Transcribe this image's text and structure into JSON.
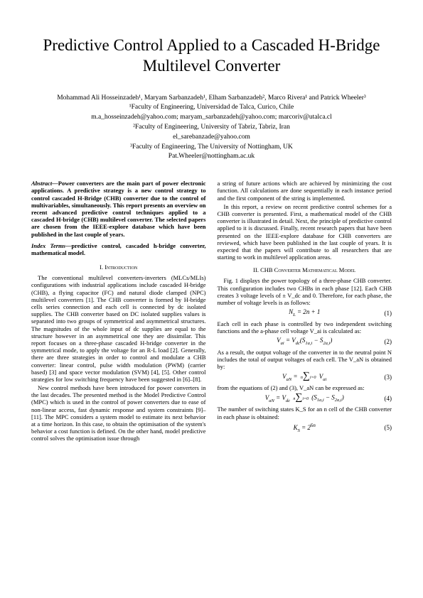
{
  "title": "Predictive Control Applied to a Cascaded H-Bridge Multilevel Converter",
  "authors": {
    "line1": "Mohammad Ali Hosseinzadeh¹, Maryam Sarbanzadeh¹, Elham Sarbanzadeh², Marco Rivera¹ and Patrick Wheeler³",
    "aff1": "¹Faculty of Engineering, Universidad de Talca, Curico, Chile",
    "email1": "m.a_hosseinzadeh@yahoo.com; maryam_sarbanzadeh@yahoo.com; marcoriv@utalca.cl",
    "aff2": "²Faculty of Engineering, University of Tabriz, Tabriz, Iran",
    "email2": "el_sarebanzade@yahoo.com",
    "aff3": "³Faculty of Engineering, The University of Nottingham, UK",
    "email3": "Pat.Wheeler@nottingham.ac.uk"
  },
  "abstract_label": "Abstract—",
  "abstract_text": "Power converters are the main part of power electronic applications. A predictive strategy is a new control strategy to control cascaded H-Bridge (CHB) converter due to the control of multivariables, simultaneously. This report presents an overview on recent advanced predictive control techniques applied to a cascaded H-bridge (CHB) multilevel converter. The selected papers are chosen from the IEEE-explore database which have been published in the last couple of years.",
  "index_label": "Index Terms—",
  "index_text": "predictive control, cascaded h-bridge converter, mathematical model.",
  "sec1_heading": "I. Introduction",
  "sec1_p1": "The conventional multilevel converters-inverters (MLCs/MLIs) configurations with industrial applications include cascaded H-bridge (CHB), a flying capacitor (FC) and natural diode clamped (NPC) multilevel converters [1]. The CHB converter is formed by H-bridge cells series connection and each cell is connected by dc isolated supplies. The CHB converter based on DC isolated supplies values is separated into two groups of symmetrical and asymmetrical structures. The magnitudes of the whole input of dc supplies are equal to the structure however in an asymmetrical one they are dissimilar. This report focuses on a three-phase cascaded H-bridge converter in the symmetrical mode, to apply the voltage for an R-L load [2]. Generally, there are three strategies in order to control and modulate a CHB converter: linear control, pulse width modulation (PWM) (carrier based) [3] and space vector modulation (SVM) [4], [5]. Other control strategies for low switching frequency have been suggested in [6]–[8].",
  "sec1_p2": "New control methods have been introduced for power converters in the last decades. The presented method is the Model Predictive Control (MPC) which is used in the control of power converters due to ease of non-linear access, fast dynamic response and system constraints [9]–[11]. The MPC considers a system model to estimate its next behavior at a time horizon. In this case, to obtain the optimisation of the system's behavior a cost function is defined. On the other hand, model predictive control solves the optimisation issue through",
  "col2_p1": "a string of future actions which are achieved by minimizing the cost function. All calculations are done sequentially in each instance period and the first component of the string is implemented.",
  "col2_p2": "In this report, a review on recent predictive control schemes for a CHB converter is presented. First, a mathematical model of the CHB converter is illustrated in detail. Next, the principle of predictive control applied to it is discussed. Finally, recent research papers that have been presented on the IEEE-explore database for CHB converters are reviewed, which have been published in the last couple of years. It is expected that the papers will contribute to all researchers that are starting to work in multilevel application areas.",
  "sec2_heading": "II. CHB Converter Mathematical Model",
  "sec2_p1": "Fig. 1 displays the power topology of a three-phase CHB converter. This configuration includes two CHBs in each phase [12]. Each CHB creates 3 voltage levels of ± V_dc and 0. Therefore, for each phase, the number of voltage levels is as follows:",
  "eq1": "N_L = 2n + 1",
  "eq1_num": "(1)",
  "sec2_p2": "Each cell in each phase is controlled by two independent switching functions and the a-phase cell voltage V_ai is calculated as:",
  "eq2": "V_ai = V_dc(S_1a,i − S_2a,i)",
  "eq2_num": "(2)",
  "sec2_p3": "As a result, the output voltage of the converter in to the neutral point N includes the total of output voltages of each cell. The V_aN is obtained by:",
  "eq3_left": "V_aN =",
  "eq3_right": "V_ai",
  "eq3_num": "(3)",
  "sec2_p4": "from the equations of (2) and (3), V_aN can be expressed as:",
  "eq4_left": "V_aN = V_dc",
  "eq4_right": "(S_1a,i − S_2a,i)",
  "eq4_num": "(4)",
  "sec2_p5": "The number of switching states K_S for an n cell of the CHB converter in each phase is obtained:",
  "eq5": "K_S = 2^6n",
  "eq5_num": "(5)"
}
